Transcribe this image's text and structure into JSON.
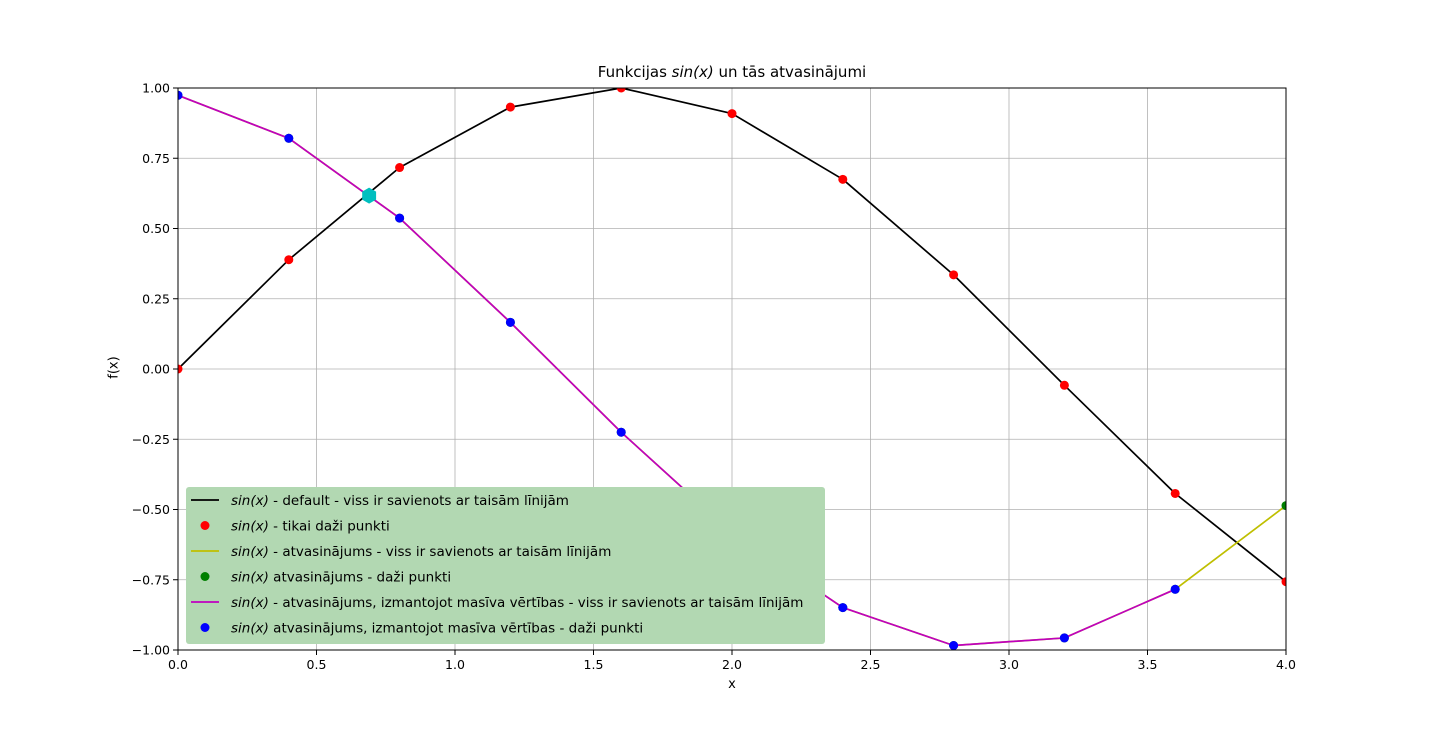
{
  "chart_data": {
    "type": "line",
    "title_parts": {
      "prefix": "Funkcijas ",
      "math": "sin(x)",
      "suffix": " un tās atvasinājumi"
    },
    "xlabel": "x",
    "ylabel": "f(x)",
    "xlim": [
      0.0,
      4.0
    ],
    "ylim": [
      -1.0,
      1.0
    ],
    "xticks": [
      0.0,
      0.5,
      1.0,
      1.5,
      2.0,
      2.5,
      3.0,
      3.5,
      4.0
    ],
    "xtick_labels": [
      "0.0",
      "0.5",
      "1.0",
      "1.5",
      "2.0",
      "2.5",
      "3.0",
      "3.5",
      "4.0"
    ],
    "yticks": [
      1.0,
      0.75,
      0.5,
      0.25,
      0.0,
      -0.25,
      -0.5,
      -0.75,
      -1.0
    ],
    "ytick_labels": [
      "1.00",
      "0.75",
      "0.50",
      "0.25",
      "0.00",
      "−0.25",
      "−0.50",
      "−0.75",
      "−1.00"
    ],
    "grid": true,
    "legend": {
      "placement": "lower-left",
      "background": "#b2d8b2"
    },
    "series": [
      {
        "name": "sin(x) - default - viss ir savienots ar taisām līnijām",
        "name_math": "sin(x)",
        "name_rest": " - default - viss ir savienots ar taisām līnijām",
        "style": "line",
        "color": "#000000",
        "x": [
          0.0,
          0.4,
          0.8,
          1.2,
          1.6,
          2.0,
          2.4,
          2.8,
          3.2,
          3.6,
          4.0
        ],
        "y": [
          0.0,
          0.389,
          0.717,
          0.932,
          1.0,
          0.909,
          0.675,
          0.335,
          -0.058,
          -0.443,
          -0.757
        ]
      },
      {
        "name": "sin(x) - tikai daži punkti",
        "name_math": "sin(x)",
        "name_rest": " - tikai daži punkti",
        "style": "markers",
        "color": "#ff0000",
        "x": [
          0.0,
          0.4,
          0.8,
          1.2,
          1.6,
          2.0,
          2.4,
          2.8,
          3.2,
          3.6,
          4.0
        ],
        "y": [
          0.0,
          0.389,
          0.717,
          0.932,
          1.0,
          0.909,
          0.675,
          0.335,
          -0.058,
          -0.443,
          -0.757
        ]
      },
      {
        "name": "sin(x) - atvasinājums - viss ir savienots ar taisām līnijām",
        "name_math": "sin(x)",
        "name_rest": " - atvasinājums - viss ir savienots ar taisām līnijām",
        "style": "line",
        "color": "#bfbf00",
        "x": [
          0.0,
          0.4,
          0.8,
          1.2,
          1.6,
          2.0,
          2.4,
          2.8,
          3.2,
          3.6,
          4.0
        ],
        "y": [
          0.974,
          0.821,
          0.537,
          0.166,
          -0.225,
          -0.583,
          -0.849,
          -0.984,
          -0.957,
          -0.784,
          -0.486
        ]
      },
      {
        "name": "sin(x) atvasinājums - daži punkti",
        "name_math": "sin(x)",
        "name_rest": " atvasinājums - daži punkti",
        "style": "markers",
        "color": "#008000",
        "x": [
          0.0,
          0.4,
          0.8,
          1.2,
          1.6,
          2.0,
          2.4,
          2.8,
          3.2,
          3.6,
          4.0
        ],
        "y": [
          0.974,
          0.821,
          0.537,
          0.166,
          -0.225,
          -0.583,
          -0.849,
          -0.984,
          -0.957,
          -0.784,
          -0.486
        ]
      },
      {
        "name": "sin(x) - atvasinājums, izmantojot masīva vērtības - viss ir savienots ar taisām līnijām",
        "name_math": "sin(x)",
        "name_rest": " - atvasinājums, izmantojot masīva vērtības - viss ir savienots ar taisām līnijām",
        "style": "line",
        "color": "#bf00bf",
        "x": [
          0.0,
          0.4,
          0.8,
          1.2,
          1.6,
          2.0,
          2.4,
          2.8,
          3.2,
          3.6
        ],
        "y": [
          0.974,
          0.821,
          0.537,
          0.166,
          -0.225,
          -0.583,
          -0.849,
          -0.984,
          -0.957,
          -0.784
        ]
      },
      {
        "name": "sin(x) atvasinājums, izmantojot masīva vērtības - daži punkti",
        "name_math": "sin(x)",
        "name_rest": " atvasinājums, izmantojot masīva vērtības - daži punkti",
        "style": "markers",
        "color": "#0000ff",
        "x": [
          0.0,
          0.4,
          0.8,
          1.2,
          1.6,
          2.0,
          2.4,
          2.8,
          3.2,
          3.6
        ],
        "y": [
          0.974,
          0.821,
          0.537,
          0.166,
          -0.225,
          -0.583,
          -0.849,
          -0.984,
          -0.957,
          -0.784
        ]
      }
    ],
    "annotations": [
      {
        "type": "intersection-marker",
        "color": "#00bfbf",
        "x": 0.69,
        "y": 0.617
      }
    ]
  }
}
